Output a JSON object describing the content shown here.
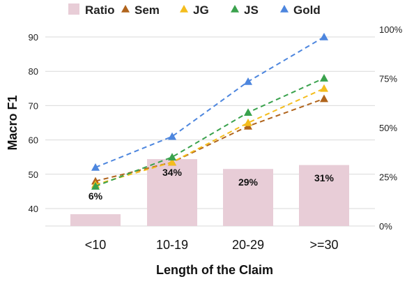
{
  "chart_data": {
    "type": "bar+line",
    "categories": [
      "<10",
      "10-19",
      "20-29",
      ">=30"
    ],
    "xlabel": "Length of the Claim",
    "ylabel": "Macro  F1",
    "ylim": [
      35,
      92
    ],
    "y_ticks": [
      40,
      50,
      60,
      70,
      80,
      90
    ],
    "y2lim": [
      0,
      100
    ],
    "y2_ticks": [
      "0%",
      "25%",
      "50%",
      "75%",
      "100%"
    ],
    "bars": {
      "name": "Ratio",
      "values": [
        6,
        34,
        29,
        31
      ],
      "labels": [
        "6%",
        "34%",
        "29%",
        "31%"
      ],
      "color": "#e8cdd7"
    },
    "series": [
      {
        "name": "Sem",
        "values": [
          48,
          53.5,
          64,
          72
        ],
        "color": "#b0641c"
      },
      {
        "name": "JG",
        "values": [
          47,
          53.5,
          65,
          75
        ],
        "color": "#f4bd1d"
      },
      {
        "name": "JS",
        "values": [
          46.5,
          55,
          68,
          78
        ],
        "color": "#3aa24d"
      },
      {
        "name": "Gold",
        "values": [
          52,
          61,
          77,
          90
        ],
        "color": "#4d86de"
      }
    ],
    "grid": true,
    "legend": "top"
  }
}
